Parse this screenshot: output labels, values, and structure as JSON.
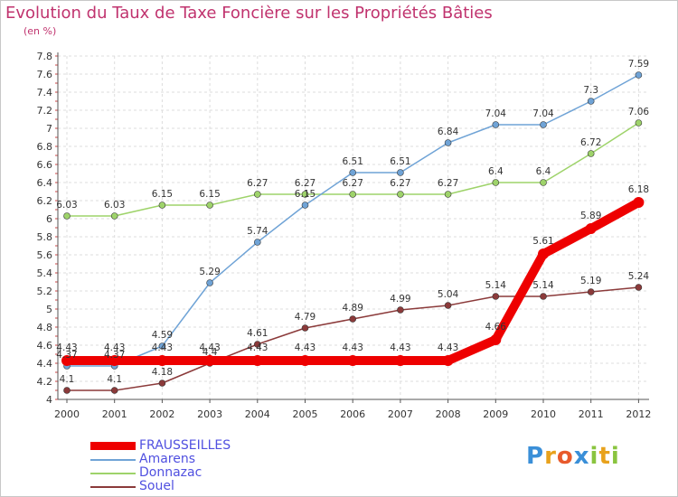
{
  "header": {
    "title": "Evolution du Taux de Taxe Foncière sur les Propriétés Bâties",
    "subtitle": "(en %)"
  },
  "logo": {
    "text": "Proxiti",
    "letters": [
      "P",
      "r",
      "o",
      "x",
      "i",
      "t",
      "i"
    ],
    "colors": [
      "#3a8fd8",
      "#e8a21c",
      "#e85a2c",
      "#3a8fd8",
      "#8ac43f",
      "#e8a21c",
      "#8ac43f"
    ]
  },
  "chart_data": {
    "type": "line",
    "title": "Evolution du Taux de Taxe Foncière sur les Propriétés Bâties",
    "ylabel": "(en %)",
    "xlabel": "",
    "x": [
      "2000",
      "2001",
      "2002",
      "2003",
      "2004",
      "2005",
      "2006",
      "2007",
      "2008",
      "2009",
      "2010",
      "2011",
      "2012"
    ],
    "ylim": [
      4,
      7.8
    ],
    "yticks": [
      "4",
      "4.2",
      "4.4",
      "4.6",
      "4.8",
      "5",
      "5.2",
      "5.4",
      "5.6",
      "5.8",
      "6",
      "6.2",
      "6.4",
      "6.6",
      "6.8",
      "7",
      "7.2",
      "7.4",
      "7.6",
      "7.8"
    ],
    "grid": true,
    "legend_position": "bottom-left",
    "series": [
      {
        "name": "FRAUSSEILLES",
        "color": "#ee0000",
        "width": 10,
        "values": [
          4.43,
          4.43,
          4.43,
          4.43,
          4.43,
          4.43,
          4.43,
          4.43,
          4.43,
          4.66,
          5.61,
          5.89,
          6.18
        ],
        "labels": [
          "4.43",
          "4.43",
          "4.43",
          "4.43",
          "4.43",
          "4.43",
          "4.43",
          "4.43",
          "4.43",
          "4.66",
          "5.61",
          "5.89",
          "6.18"
        ]
      },
      {
        "name": "Amarens",
        "color": "#6fa3d6",
        "width": 1.5,
        "values": [
          4.37,
          4.37,
          4.59,
          5.29,
          5.74,
          6.15,
          6.51,
          6.51,
          6.84,
          7.04,
          7.04,
          7.3,
          7.59
        ],
        "labels": [
          "4.37",
          "4.37",
          "4.59",
          "5.29",
          "5.74",
          "6.15",
          "6.51",
          "6.51",
          "6.84",
          "7.04",
          "7.04",
          "7.3",
          "7.59"
        ]
      },
      {
        "name": "Donnazac",
        "color": "#9ed36a",
        "width": 1.5,
        "values": [
          6.03,
          6.03,
          6.15,
          6.15,
          6.27,
          6.27,
          6.27,
          6.27,
          6.27,
          6.4,
          6.4,
          6.72,
          7.06
        ],
        "labels": [
          "6.03",
          "6.03",
          "6.15",
          "6.15",
          "6.27",
          "6.27",
          "6.27",
          "6.27",
          "6.27",
          "6.4",
          "6.4",
          "6.72",
          "7.06"
        ]
      },
      {
        "name": "Souel",
        "color": "#8b3a3a",
        "width": 1.5,
        "values": [
          4.1,
          4.1,
          4.18,
          4.4,
          4.61,
          4.79,
          4.89,
          4.99,
          5.04,
          5.14,
          5.14,
          5.19,
          5.24
        ],
        "labels": [
          "4.1",
          "4.1",
          "4.18",
          "4.4",
          "4.61",
          "4.79",
          "4.89",
          "4.99",
          "5.04",
          "5.14",
          "5.14",
          "5.19",
          "5.24"
        ]
      }
    ]
  }
}
